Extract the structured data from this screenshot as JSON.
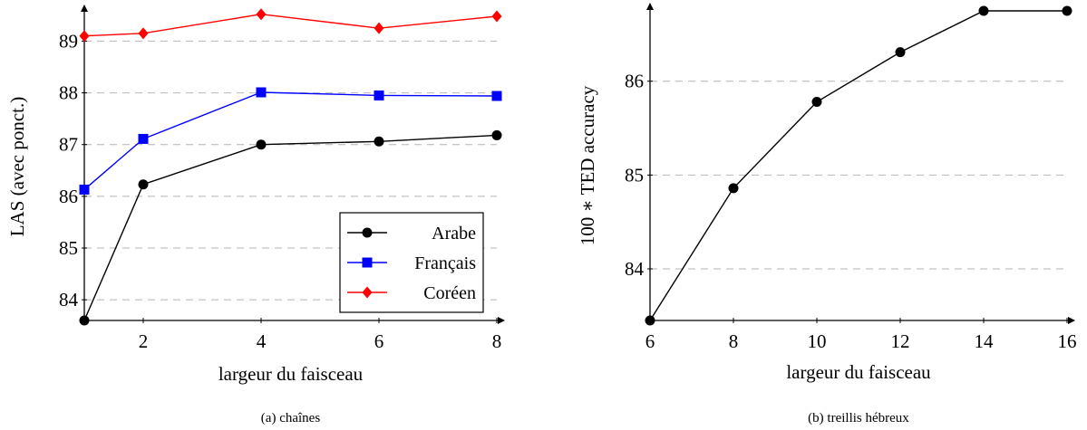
{
  "chart_data": [
    {
      "type": "line",
      "caption": "(a) chaînes",
      "xlabel": "largeur du faisceau",
      "ylabel": "LAS (avec ponct.)",
      "x": [
        1,
        2,
        4,
        6,
        8
      ],
      "xlim": [
        1,
        8
      ],
      "ylim": [
        83.6,
        89.55
      ],
      "xticks": [
        2,
        4,
        6,
        8
      ],
      "yticks": [
        84,
        85,
        86,
        87,
        88,
        89
      ],
      "grid": "horizontal dashed",
      "legend_position": "bottom-right",
      "series": [
        {
          "name": "Arabe",
          "color": "#000000",
          "marker": "circle",
          "values": [
            83.6,
            86.23,
            87.0,
            87.06,
            87.18
          ]
        },
        {
          "name": "Français",
          "color": "#0000ff",
          "marker": "square",
          "values": [
            86.13,
            87.11,
            88.01,
            87.95,
            87.94
          ]
        },
        {
          "name": "Coréen",
          "color": "#ff0000",
          "marker": "diamond",
          "values": [
            89.1,
            89.15,
            89.52,
            89.25,
            89.48
          ]
        }
      ]
    },
    {
      "type": "line",
      "caption": "(b) treillis hébreux",
      "xlabel": "largeur du faisceau",
      "ylabel": "100 ∗ TED accuracy",
      "x": [
        6,
        8,
        10,
        12,
        14,
        16
      ],
      "xlim": [
        6,
        16
      ],
      "ylim": [
        83.45,
        86.75
      ],
      "xticks": [
        6,
        8,
        10,
        12,
        14,
        16
      ],
      "yticks": [
        84,
        85,
        86
      ],
      "grid": "horizontal dashed",
      "series": [
        {
          "color": "#000000",
          "marker": "circle",
          "values": [
            83.45,
            84.86,
            85.78,
            86.31,
            86.75,
            86.75
          ]
        }
      ]
    }
  ]
}
